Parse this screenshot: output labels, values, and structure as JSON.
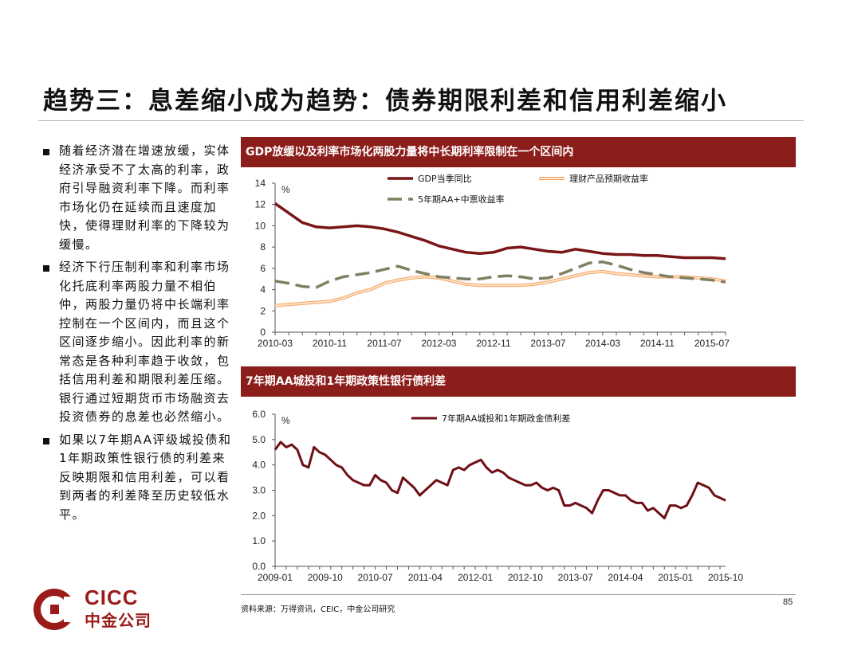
{
  "page": {
    "title": "趋势三：息差缩小成为趋势：债券期限利差和信用利差缩小",
    "source": "资料来源：万得资讯，CEIC，中金公司研究",
    "page_number": "85",
    "logo_en": "CICC",
    "logo_cn": "中金公司"
  },
  "bullets": [
    "随着经济潜在增速放缓，实体经济承受不了太高的利率，政府引导融资利率下降。而利率市场化仍在延续而且速度加快，使得理财利率的下降较为缓慢。",
    "经济下行压制利率和利率市场化托底利率两股力量不相伯仲，两股力量仍将中长端利率控制在一个区间内，而且这个区间逐步缩小。因此利率的新常态是各种利率趋于收敛，包括信用利差和期限利差压缩。银行通过短期货币市场融资去投资债券的息差也必然缩小。",
    "如果以7年期AA评级城投债和1年期政策性银行债的利差来反映期限和信用利差，可以看到两者的利差降至历史较低水平。"
  ],
  "colors": {
    "banner": "#8b1d1b",
    "gdp": "#7a1518",
    "wealth": "#f4a460",
    "bond5y": "#7f7f62",
    "spread": "#6e0f16"
  },
  "chart_data": [
    {
      "type": "line",
      "title": "GDP放缓以及利率市场化两股力量将中长期利率限制在一个区间内",
      "unit_label": "%",
      "ylim": [
        0,
        14
      ],
      "yticks": [
        "0",
        "2",
        "4",
        "6",
        "8",
        "10",
        "12",
        "14"
      ],
      "xlim": [
        0,
        66
      ],
      "xtick_labels": [
        "2010-03",
        "2010-11",
        "2011-07",
        "2012-03",
        "2012-11",
        "2013-07",
        "2014-03",
        "2014-11",
        "2015-07"
      ],
      "xtick_positions": [
        0,
        8,
        16,
        24,
        32,
        40,
        48,
        56,
        64
      ],
      "series": [
        {
          "name": "GDP当季同比",
          "x": [
            0,
            2,
            4,
            6,
            8,
            10,
            12,
            14,
            16,
            18,
            20,
            22,
            24,
            26,
            28,
            30,
            32,
            34,
            36,
            38,
            40,
            42,
            44,
            46,
            48,
            50,
            52,
            54,
            56,
            58,
            60,
            62,
            64,
            66
          ],
          "values": [
            12.1,
            11.2,
            10.3,
            9.9,
            9.8,
            9.9,
            10.0,
            9.9,
            9.7,
            9.4,
            9.0,
            8.6,
            8.1,
            7.8,
            7.5,
            7.4,
            7.5,
            7.9,
            8.0,
            7.8,
            7.6,
            7.5,
            7.8,
            7.6,
            7.4,
            7.3,
            7.3,
            7.2,
            7.2,
            7.1,
            7.0,
            7.0,
            7.0,
            6.9
          ]
        },
        {
          "name": "理财产品预期收益率",
          "x": [
            0,
            2,
            4,
            6,
            8,
            10,
            12,
            14,
            16,
            18,
            20,
            22,
            24,
            26,
            28,
            30,
            32,
            34,
            36,
            38,
            40,
            42,
            44,
            46,
            48,
            50,
            52,
            54,
            56,
            58,
            60,
            62,
            64,
            66
          ],
          "values": [
            2.5,
            2.6,
            2.7,
            2.8,
            2.9,
            3.2,
            3.7,
            4.0,
            4.6,
            4.9,
            5.1,
            5.2,
            5.1,
            4.8,
            4.5,
            4.4,
            4.4,
            4.4,
            4.4,
            4.5,
            4.7,
            5.0,
            5.3,
            5.6,
            5.7,
            5.5,
            5.4,
            5.3,
            5.2,
            5.2,
            5.2,
            5.1,
            5.0,
            4.8
          ]
        },
        {
          "name": "5年期AA+中票收益率",
          "x": [
            0,
            2,
            4,
            6,
            8,
            10,
            12,
            14,
            16,
            18,
            20,
            22,
            24,
            26,
            28,
            30,
            32,
            34,
            36,
            38,
            40,
            42,
            44,
            46,
            48,
            50,
            52,
            54,
            56,
            58,
            60,
            62,
            64,
            66
          ],
          "values": [
            4.8,
            4.6,
            4.3,
            4.2,
            4.8,
            5.2,
            5.4,
            5.6,
            5.9,
            6.2,
            5.8,
            5.5,
            5.2,
            5.1,
            5.0,
            5.0,
            5.2,
            5.3,
            5.2,
            5.0,
            5.1,
            5.5,
            6.0,
            6.5,
            6.6,
            6.3,
            5.9,
            5.6,
            5.4,
            5.2,
            5.1,
            5.0,
            4.9,
            4.7
          ]
        }
      ]
    },
    {
      "type": "line",
      "title": "7年期AA城投和1年期政策性银行债利差",
      "unit_label": "%",
      "ylim": [
        0,
        6
      ],
      "yticks": [
        "0.0",
        "1.0",
        "2.0",
        "3.0",
        "4.0",
        "5.0",
        "6.0"
      ],
      "xlim": [
        0,
        81
      ],
      "xtick_labels": [
        "2009-01",
        "2009-10",
        "2010-07",
        "2011-04",
        "2012-01",
        "2012-10",
        "2013-07",
        "2014-04",
        "2015-01",
        "2015-10"
      ],
      "xtick_positions": [
        0,
        9,
        18,
        27,
        36,
        45,
        54,
        63,
        72,
        81
      ],
      "series": [
        {
          "name": "7年期AA城投和1年期政金债利差",
          "x": [
            0,
            1,
            2,
            3,
            4,
            5,
            6,
            7,
            8,
            9,
            10,
            11,
            12,
            13,
            14,
            15,
            16,
            17,
            18,
            19,
            20,
            21,
            22,
            23,
            24,
            25,
            26,
            27,
            28,
            29,
            30,
            31,
            32,
            33,
            34,
            35,
            36,
            37,
            38,
            39,
            40,
            41,
            42,
            43,
            44,
            45,
            46,
            47,
            48,
            49,
            50,
            51,
            52,
            53,
            54,
            55,
            56,
            57,
            58,
            59,
            60,
            61,
            62,
            63,
            64,
            65,
            66,
            67,
            68,
            69,
            70,
            71,
            72,
            73,
            74,
            75,
            76,
            77,
            78,
            79,
            80,
            81
          ],
          "values": [
            4.6,
            4.9,
            4.7,
            4.8,
            4.6,
            4.0,
            3.9,
            4.7,
            4.5,
            4.4,
            4.2,
            4.0,
            3.9,
            3.6,
            3.4,
            3.3,
            3.2,
            3.2,
            3.6,
            3.4,
            3.3,
            3.0,
            2.9,
            3.5,
            3.3,
            3.1,
            2.8,
            3.0,
            3.2,
            3.4,
            3.3,
            3.2,
            3.8,
            3.9,
            3.8,
            4.0,
            4.1,
            4.2,
            3.9,
            3.7,
            3.8,
            3.7,
            3.5,
            3.4,
            3.3,
            3.2,
            3.2,
            3.3,
            3.1,
            3.0,
            3.1,
            3.0,
            2.4,
            2.4,
            2.5,
            2.4,
            2.3,
            2.1,
            2.6,
            3.0,
            3.0,
            2.9,
            2.8,
            2.8,
            2.6,
            2.5,
            2.5,
            2.2,
            2.3,
            2.1,
            1.9,
            2.4,
            2.4,
            2.3,
            2.4,
            2.8,
            3.3,
            3.2,
            3.1,
            2.8,
            2.7,
            2.6
          ]
        }
      ]
    }
  ]
}
